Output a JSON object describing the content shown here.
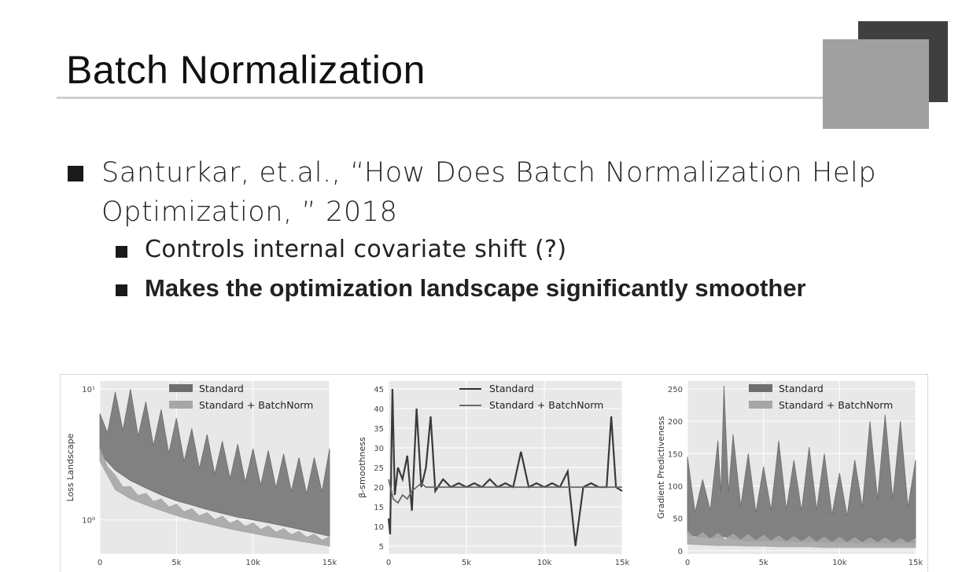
{
  "slide": {
    "title": "Batch Normalization",
    "bullets": [
      {
        "text": "Santurkar, et.al., “How Does Batch Normalization Help Optimization, ” 2018",
        "sub": [
          "Controls internal covariate shift (?)",
          "Makes the optimization landscape significantly smoother"
        ]
      }
    ]
  },
  "colors": {
    "deco_dark": "#3f3f3f",
    "deco_light": "#a0a0a0",
    "plot_bg": "#e8e8e8",
    "standard": "#6e6e6e",
    "batchnorm": "#a6a6a6"
  },
  "chart_data": [
    {
      "type": "line",
      "ylabel": "Loss Landscape",
      "yscale": "log",
      "yticks": [
        "10¹",
        "10⁰"
      ],
      "xticks": [
        "0",
        "5k",
        "10k",
        "15k"
      ],
      "xlim": [
        0,
        15000
      ],
      "grid": true,
      "legend_position": "top-center",
      "series": [
        {
          "name": "Standard",
          "x": [
            0,
            1000,
            2000,
            3000,
            4000,
            5000,
            6000,
            7000,
            8000,
            9000,
            10000,
            11000,
            12000,
            13000,
            14000,
            15000
          ],
          "low": [
            3.2,
            2.4,
            2.0,
            1.75,
            1.55,
            1.4,
            1.3,
            1.2,
            1.12,
            1.05,
            1.0,
            0.95,
            0.9,
            0.85,
            0.8,
            0.75
          ],
          "high": [
            6.5,
            9.5,
            10.0,
            8.0,
            7.0,
            6.0,
            5.0,
            4.5,
            4.0,
            3.8,
            3.5,
            3.4,
            3.2,
            3.0,
            3.0,
            3.5
          ]
        },
        {
          "name": "Standard + BatchNorm",
          "x": [
            0,
            1000,
            2000,
            3000,
            4000,
            5000,
            6000,
            7000,
            8000,
            9000,
            10000,
            11000,
            12000,
            13000,
            14000,
            15000
          ],
          "low": [
            2.8,
            1.7,
            1.45,
            1.3,
            1.18,
            1.08,
            1.0,
            0.94,
            0.88,
            0.83,
            0.79,
            0.75,
            0.72,
            0.69,
            0.66,
            0.63
          ],
          "high": [
            3.5,
            2.2,
            1.8,
            1.6,
            1.45,
            1.32,
            1.22,
            1.14,
            1.07,
            1.0,
            0.95,
            0.9,
            0.86,
            0.82,
            0.78,
            0.74
          ]
        }
      ]
    },
    {
      "type": "line",
      "ylabel": "β-smoothness",
      "yticks": [
        5,
        10,
        15,
        20,
        25,
        30,
        35,
        40,
        45
      ],
      "xticks": [
        "0",
        "5k",
        "10k",
        "15k"
      ],
      "xlim": [
        0,
        15000
      ],
      "ylim": [
        3,
        47
      ],
      "grid": true,
      "legend_position": "top-center",
      "series": [
        {
          "name": "Standard",
          "x": [
            0,
            100,
            250,
            400,
            600,
            900,
            1200,
            1500,
            1800,
            2100,
            2400,
            2700,
            3000,
            3500,
            4000,
            4500,
            5000,
            5500,
            6000,
            6500,
            7000,
            7500,
            8000,
            8500,
            9000,
            9500,
            10000,
            10500,
            11000,
            11500,
            12000,
            12500,
            13000,
            13500,
            14000,
            14300,
            14600,
            15000
          ],
          "y": [
            12,
            8,
            45,
            18,
            25,
            22,
            28,
            14,
            40,
            20,
            25,
            38,
            19,
            22,
            20,
            21,
            20,
            21,
            20,
            22,
            20,
            21,
            20,
            29,
            20,
            21,
            20,
            21,
            20,
            24,
            5,
            20,
            21,
            20,
            20,
            38,
            20,
            19
          ]
        },
        {
          "name": "Standard + BatchNorm",
          "x": [
            0,
            300,
            600,
            900,
            1200,
            1500,
            1800,
            2100,
            2400,
            2700,
            3000,
            4000,
            5000,
            6000,
            7000,
            8000,
            9000,
            10000,
            11000,
            12000,
            13000,
            14000,
            15000
          ],
          "y": [
            22,
            17,
            16,
            18,
            17,
            19,
            20,
            21,
            20,
            20,
            20,
            20,
            20,
            20,
            20,
            20,
            20,
            20,
            20,
            20,
            20,
            20,
            20
          ]
        }
      ]
    },
    {
      "type": "area",
      "ylabel": "Gradient Predictiveness",
      "yticks": [
        0,
        50,
        100,
        150,
        200,
        250
      ],
      "xticks": [
        "0",
        "5k",
        "10k",
        "15k"
      ],
      "xlim": [
        0,
        15000
      ],
      "ylim": [
        -5,
        262
      ],
      "grid": true,
      "legend_position": "top-right",
      "series": [
        {
          "name": "Standard",
          "x": [
            0,
            1000,
            2000,
            2400,
            3000,
            4000,
            5000,
            6000,
            7000,
            8000,
            9000,
            10000,
            11000,
            12000,
            13000,
            14000,
            15000
          ],
          "high": [
            145,
            110,
            170,
            255,
            180,
            150,
            130,
            170,
            140,
            160,
            150,
            120,
            140,
            200,
            210,
            200,
            140
          ],
          "base": [
            25,
            20,
            20,
            22,
            18,
            15,
            15,
            15,
            14,
            14,
            13,
            13,
            12,
            12,
            12,
            12,
            12
          ]
        },
        {
          "name": "Standard + BatchNorm",
          "x": [
            0,
            1000,
            2000,
            3000,
            4000,
            5000,
            6000,
            7000,
            8000,
            9000,
            10000,
            11000,
            12000,
            13000,
            14000,
            15000
          ],
          "high": [
            30,
            28,
            27,
            26,
            25,
            24,
            23,
            22,
            22,
            21,
            21,
            20,
            20,
            20,
            19,
            19
          ],
          "base": [
            10,
            9,
            8,
            8,
            7,
            7,
            6,
            6,
            6,
            5,
            5,
            5,
            5,
            5,
            5,
            5
          ]
        }
      ]
    }
  ]
}
